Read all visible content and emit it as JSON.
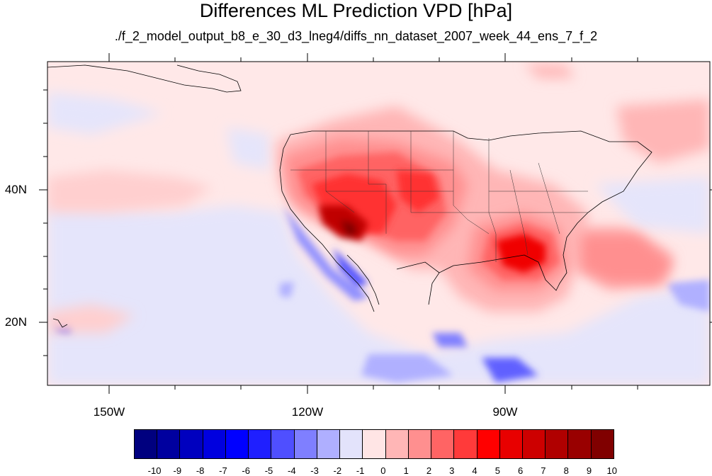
{
  "map": {
    "title": "Differences ML Prediction VPD [hPa]",
    "subtitle": "./f_2_model_output_b8_e_30_d3_lneg4/diffs_nn_dataset_2007_week_44_ens_7_f_2",
    "lon_labels": [
      "150W",
      "120W",
      "90W"
    ],
    "lat_labels": [
      "40N",
      "20N"
    ],
    "lon_range": [
      -160,
      -61
    ],
    "lat_range": [
      11,
      58
    ]
  },
  "colorbar": {
    "tick_labels": [
      "-10",
      "-9",
      "-8",
      "-7",
      "-6",
      "-5",
      "-4",
      "-3",
      "-2",
      "-1",
      "0",
      "1",
      "2",
      "3",
      "4",
      "5",
      "6",
      "7",
      "8",
      "9",
      "10"
    ],
    "colors": [
      "#00007f",
      "#00009f",
      "#0000bf",
      "#0000df",
      "#0000ff",
      "#1f1fff",
      "#4f4fff",
      "#7f7fff",
      "#afafff",
      "#e3e3fb",
      "#ffe5e5",
      "#ffb6b6",
      "#ff8f8f",
      "#ff6464",
      "#ff3a3a",
      "#ff0000",
      "#e80000",
      "#cd0000",
      "#b00000",
      "#990000",
      "#800000"
    ]
  }
}
